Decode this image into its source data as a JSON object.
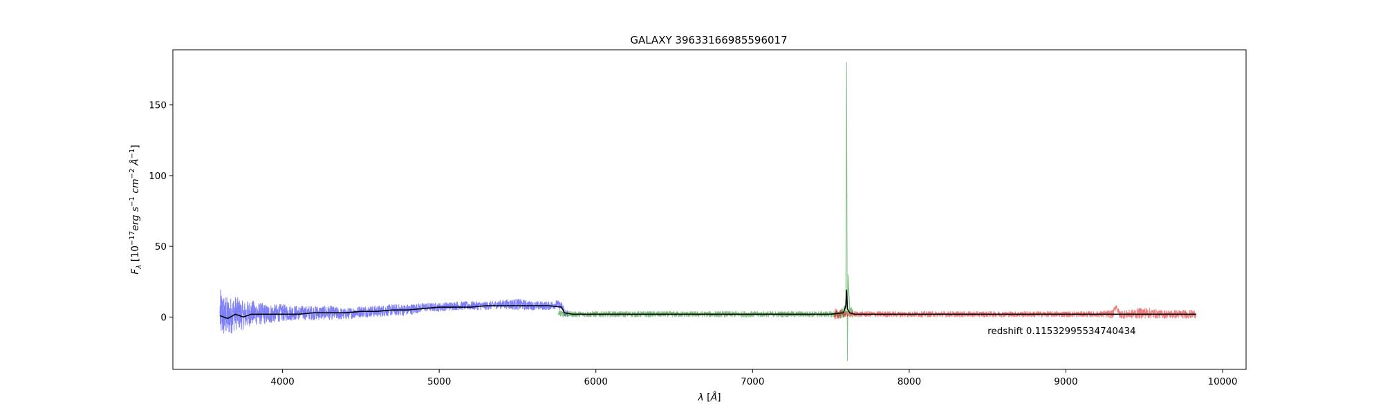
{
  "chart_data": {
    "type": "line",
    "title": "GALAXY 39633166985596017",
    "xlabel": "λ [Å]",
    "ylabel": "F_λ [10^-17 erg s^-1 cm^-2 Å^-1]",
    "ylabel_parts": {
      "f": "F",
      "lambda_sub": "λ",
      "open": " [10",
      "exp17": "−17",
      "erg": "erg s",
      "exp1a": "−1",
      "cm": " cm",
      "exp2": "−2",
      "ang": " Å",
      "exp1b": "−1",
      "close": "]"
    },
    "xlabel_parts": {
      "lambda": "λ",
      "open": " [",
      "ang": "Å",
      "close": "]"
    },
    "xlim": [
      3300,
      10150
    ],
    "ylim": [
      -37,
      189
    ],
    "xticks": [
      {
        "value": 4000,
        "label": "4000"
      },
      {
        "value": 5000,
        "label": "5000"
      },
      {
        "value": 6000,
        "label": "6000"
      },
      {
        "value": 7000,
        "label": "7000"
      },
      {
        "value": 8000,
        "label": "8000"
      },
      {
        "value": 9000,
        "label": "9000"
      },
      {
        "value": 10000,
        "label": "10000"
      }
    ],
    "yticks": [
      {
        "value": 0,
        "label": "0"
      },
      {
        "value": 50,
        "label": "50"
      },
      {
        "value": 100,
        "label": "100"
      },
      {
        "value": 150,
        "label": "150"
      }
    ],
    "grid": false,
    "annotation": {
      "text": "redshift 0.11532995534740434",
      "x": 8500,
      "y": -12
    },
    "series": [
      {
        "color": "#0000ee",
        "opacity": 0.5,
        "x": [
          3600,
          3650,
          3700,
          3750,
          3800,
          3900,
          4000,
          4100,
          4200,
          4300,
          4400,
          4500,
          4600,
          4700,
          4800,
          4900,
          5000,
          5100,
          5200,
          5300,
          5400,
          5500,
          5600,
          5700,
          5750,
          5790,
          5800,
          5820
        ],
        "y": [
          2,
          0,
          3,
          1,
          3,
          2,
          3,
          3,
          3,
          3,
          2,
          4,
          4,
          5,
          5,
          7,
          7,
          8,
          8,
          8,
          9,
          9,
          8,
          8,
          9,
          7,
          3,
          2
        ],
        "noise": [
          18,
          14,
          12,
          10,
          9,
          7,
          6,
          5,
          5,
          5,
          4,
          4,
          4,
          4,
          4,
          3,
          3,
          3,
          3,
          3,
          3,
          4,
          3,
          3,
          3,
          3,
          3,
          3
        ]
      },
      {
        "color": "#008000",
        "opacity": 0.5,
        "x": [
          5760,
          5800,
          5900,
          6000,
          6200,
          6400,
          6600,
          6800,
          7000,
          7200,
          7400,
          7500,
          7550,
          7580,
          7595,
          7600,
          7605,
          7610,
          7620,
          7640
        ],
        "y": [
          3,
          2,
          2,
          2,
          2,
          2,
          2,
          2,
          2,
          2,
          2,
          2,
          2,
          3,
          5,
          180,
          -31,
          30,
          5,
          2
        ],
        "noise": [
          2,
          2,
          2,
          2,
          2,
          2,
          2,
          2,
          2,
          2,
          2,
          2,
          3,
          4,
          6,
          0,
          0,
          0,
          4,
          3
        ]
      },
      {
        "color": "#dd0000",
        "opacity": 0.5,
        "x": [
          7520,
          7600,
          7700,
          7800,
          8000,
          8200,
          8400,
          8600,
          8800,
          9000,
          9200,
          9300,
          9320,
          9340,
          9400,
          9500,
          9600,
          9700,
          9800,
          9830
        ],
        "y": [
          2,
          2,
          2,
          2,
          2,
          2,
          2,
          2,
          2,
          2,
          2,
          2,
          8,
          2,
          2,
          3,
          2,
          2,
          2,
          2
        ],
        "noise": [
          4,
          2,
          2,
          2,
          2,
          2,
          2,
          2,
          2,
          2,
          2,
          3,
          2,
          3,
          3,
          4,
          3,
          3,
          3,
          3
        ]
      },
      {
        "color": "#000000",
        "opacity": 1,
        "x": [
          3600,
          3650,
          3700,
          3750,
          3800,
          3900,
          4000,
          4100,
          4200,
          4300,
          4400,
          4500,
          4600,
          4700,
          4800,
          4900,
          5000,
          5100,
          5200,
          5300,
          5400,
          5500,
          5600,
          5700,
          5780,
          5800,
          5850,
          6000,
          6500,
          7000,
          7500,
          7580,
          7595,
          7600,
          7605,
          7620,
          7650,
          8000,
          8500,
          9000,
          9500,
          9830
        ],
        "y": [
          1,
          -1,
          2,
          0,
          2,
          2,
          2,
          2,
          3,
          3,
          3,
          4,
          4,
          5,
          5,
          6,
          7,
          7,
          7,
          8,
          8,
          8,
          8,
          8,
          7,
          3,
          2,
          2,
          2,
          2,
          2,
          3,
          8,
          19,
          6,
          3,
          2,
          2,
          2,
          2,
          2,
          2
        ],
        "noise": []
      }
    ]
  }
}
